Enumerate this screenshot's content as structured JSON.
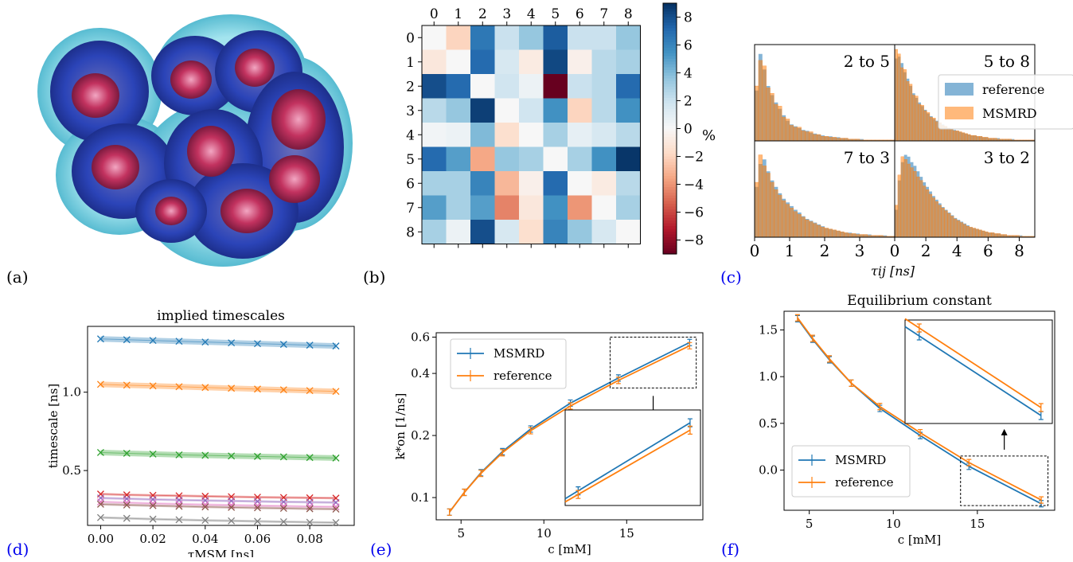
{
  "panel_labels": [
    "(a)",
    "(b)",
    "(c)",
    "(d)",
    "(e)",
    "(f)"
  ],
  "colors": {
    "blue": "#1f77b4",
    "orange": "#ff7f0e",
    "green": "#2ca02c",
    "red": "#d62728",
    "purple": "#9467bd",
    "brown": "#8c564b",
    "pink": "#e377c2",
    "gray": "#7f7f7f"
  },
  "chart_data": [
    {
      "id": "b",
      "type": "heatmap",
      "x_ticks": [
        "0",
        "1",
        "2",
        "3",
        "4",
        "5",
        "6",
        "7",
        "8"
      ],
      "y_ticks": [
        "0",
        "1",
        "2",
        "3",
        "4",
        "5",
        "6",
        "7",
        "8"
      ],
      "matrix": [
        [
          0,
          -2.0,
          6.5,
          2.0,
          3.5,
          7.5,
          2.0,
          2.0,
          3.5
        ],
        [
          -1.0,
          0,
          7.0,
          1.5,
          -0.8,
          8.2,
          -0.5,
          2.5,
          3.0
        ],
        [
          8.0,
          7.0,
          0,
          1.8,
          0.5,
          -9.0,
          2.0,
          2.5,
          7.0
        ],
        [
          2.5,
          3.5,
          8.5,
          0,
          1.8,
          5.5,
          -2.0,
          2.5,
          5.5
        ],
        [
          0.3,
          0.5,
          4.0,
          -1.5,
          0,
          3.0,
          0.8,
          1.5,
          2.5
        ],
        [
          7.0,
          5.0,
          -3.5,
          3.5,
          3.0,
          0,
          3.0,
          5.5,
          8.8
        ],
        [
          3.0,
          3.0,
          6.0,
          -3.0,
          -0.5,
          7.0,
          0,
          -0.8,
          2.5
        ],
        [
          5.0,
          3.0,
          5.0,
          -4.5,
          -1.0,
          5.5,
          -4.0,
          0,
          3.0
        ],
        [
          3.0,
          0.5,
          8.0,
          1.5,
          -1.5,
          6.0,
          3.5,
          1.5,
          0
        ]
      ],
      "colorbar_ticks": [
        8,
        6,
        4,
        2,
        0,
        -2,
        -4,
        -6,
        -8
      ],
      "colorbar_ticks_text": [
        "8",
        "6",
        "4",
        "2",
        "0",
        "−2",
        "−4",
        "−6",
        "−8"
      ],
      "colorbar_unit": "%",
      "vlim": [
        -9,
        9
      ]
    },
    {
      "id": "c",
      "type": "bar",
      "xlabel": "τij [ns]",
      "legend": [
        "reference",
        "MSMRD"
      ],
      "legend_position": "top-right",
      "subplots": [
        {
          "title": "2 to 5",
          "xlim": [
            0,
            4
          ],
          "reference": [
            0.55,
            0.95,
            0.78,
            0.6,
            0.5,
            0.42,
            0.35,
            0.28,
            0.22,
            0.18,
            0.16,
            0.14,
            0.12,
            0.11,
            0.09,
            0.08,
            0.07,
            0.06,
            0.05,
            0.05,
            0.04,
            0.04,
            0.03,
            0.03,
            0.02,
            0.02,
            0.02,
            0.02,
            0.01,
            0.01,
            0.01,
            0.01,
            0.01,
            0.01,
            0.01,
            0.01
          ],
          "msmrd": [
            0.6,
            0.88,
            0.82,
            0.58,
            0.52,
            0.4,
            0.38,
            0.26,
            0.24,
            0.17,
            0.15,
            0.15,
            0.11,
            0.1,
            0.1,
            0.07,
            0.07,
            0.05,
            0.05,
            0.04,
            0.04,
            0.03,
            0.03,
            0.03,
            0.02,
            0.02,
            0.02,
            0.01,
            0.01,
            0.01,
            0.01,
            0.01,
            0.01,
            0.01,
            0.01,
            0.01
          ]
        },
        {
          "title": "5 to 8",
          "xlim": [
            0,
            9
          ],
          "reference": [
            0.9,
            0.92,
            0.85,
            0.75,
            0.68,
            0.6,
            0.52,
            0.47,
            0.42,
            0.38,
            0.34,
            0.3,
            0.27,
            0.24,
            0.22,
            0.2,
            0.18,
            0.16,
            0.14,
            0.13,
            0.12,
            0.11,
            0.1,
            0.09,
            0.08,
            0.07,
            0.06,
            0.06,
            0.05,
            0.05,
            0.04,
            0.04,
            0.03,
            0.03,
            0.03,
            0.03,
            0.02,
            0.02,
            0.02,
            0.02,
            0.02,
            0.01,
            0.01,
            0.01,
            0.01,
            0.01,
            0.01,
            0.01
          ],
          "msmrd": [
            1.0,
            0.95,
            0.8,
            0.78,
            0.65,
            0.62,
            0.5,
            0.49,
            0.4,
            0.39,
            0.33,
            0.31,
            0.26,
            0.25,
            0.21,
            0.2,
            0.17,
            0.16,
            0.14,
            0.13,
            0.11,
            0.11,
            0.1,
            0.09,
            0.08,
            0.07,
            0.06,
            0.06,
            0.05,
            0.05,
            0.04,
            0.04,
            0.03,
            0.03,
            0.03,
            0.02,
            0.02,
            0.02,
            0.02,
            0.02,
            0.01,
            0.01,
            0.01,
            0.01,
            0.01,
            0.01,
            0.01,
            0.01
          ]
        },
        {
          "title": "7 to 3",
          "xlim": [
            0,
            4
          ],
          "reference": [
            0.55,
            0.8,
            0.85,
            0.72,
            0.62,
            0.55,
            0.48,
            0.42,
            0.38,
            0.34,
            0.3,
            0.27,
            0.23,
            0.2,
            0.18,
            0.16,
            0.14,
            0.12,
            0.1,
            0.09,
            0.08,
            0.07,
            0.06,
            0.05,
            0.05,
            0.04,
            0.04,
            0.03,
            0.03,
            0.03,
            0.02,
            0.02,
            0.02,
            0.02,
            0.01,
            0.01
          ],
          "msmrd": [
            0.6,
            0.9,
            0.78,
            0.7,
            0.6,
            0.52,
            0.46,
            0.4,
            0.36,
            0.32,
            0.28,
            0.25,
            0.22,
            0.19,
            0.17,
            0.15,
            0.13,
            0.11,
            0.1,
            0.09,
            0.08,
            0.07,
            0.06,
            0.05,
            0.04,
            0.04,
            0.03,
            0.03,
            0.03,
            0.02,
            0.02,
            0.02,
            0.02,
            0.01,
            0.01,
            0.01
          ]
        },
        {
          "title": "3 to 2",
          "xlim": [
            0,
            9
          ],
          "reference": [
            0.3,
            0.62,
            0.82,
            0.9,
            0.88,
            0.82,
            0.78,
            0.72,
            0.66,
            0.6,
            0.55,
            0.5,
            0.45,
            0.41,
            0.37,
            0.33,
            0.3,
            0.27,
            0.24,
            0.21,
            0.19,
            0.17,
            0.15,
            0.13,
            0.11,
            0.1,
            0.09,
            0.08,
            0.07,
            0.06,
            0.05,
            0.05,
            0.04,
            0.04,
            0.03,
            0.03,
            0.02,
            0.02,
            0.02,
            0.02,
            0.02,
            0.01,
            0.01,
            0.01,
            0.01
          ],
          "msmrd": [
            0.35,
            0.68,
            0.88,
            0.85,
            0.8,
            0.76,
            0.72,
            0.66,
            0.62,
            0.56,
            0.52,
            0.47,
            0.43,
            0.39,
            0.35,
            0.32,
            0.29,
            0.26,
            0.23,
            0.2,
            0.18,
            0.16,
            0.14,
            0.12,
            0.11,
            0.1,
            0.09,
            0.08,
            0.07,
            0.06,
            0.05,
            0.05,
            0.04,
            0.04,
            0.03,
            0.03,
            0.02,
            0.02,
            0.02,
            0.02,
            0.01,
            0.01,
            0.01,
            0.01,
            0.01
          ]
        }
      ],
      "x_ticks_left": [
        "0",
        "1",
        "2",
        "3"
      ],
      "x_ticks_right": [
        "0",
        "2",
        "4",
        "6",
        "8"
      ]
    },
    {
      "id": "d",
      "type": "line",
      "title": "implied timescales",
      "xlabel": "τMSM [ns]",
      "ylabel": "timescale [ns]",
      "x": [
        0.0,
        0.01,
        0.02,
        0.03,
        0.04,
        0.05,
        0.06,
        0.07,
        0.08,
        0.09
      ],
      "xlim": [
        -0.005,
        0.097
      ],
      "ylim": [
        0.15,
        1.42
      ],
      "x_ticks": [
        0.0,
        0.02,
        0.04,
        0.06,
        0.08
      ],
      "x_ticks_text": [
        "0.00",
        "0.02",
        "0.04",
        "0.06",
        "0.08"
      ],
      "y_ticks": [
        0.5,
        1.0
      ],
      "y_ticks_text": [
        "0.5",
        "1.0"
      ],
      "series": [
        {
          "color": "#1f77b4",
          "values": [
            1.34,
            1.335,
            1.33,
            1.325,
            1.32,
            1.315,
            1.31,
            1.305,
            1.3,
            1.295
          ]
        },
        {
          "color": "#ff7f0e",
          "values": [
            1.05,
            1.045,
            1.04,
            1.035,
            1.03,
            1.025,
            1.02,
            1.015,
            1.01,
            1.005
          ]
        },
        {
          "color": "#2ca02c",
          "values": [
            0.615,
            0.61,
            0.605,
            0.6,
            0.597,
            0.593,
            0.59,
            0.587,
            0.583,
            0.58
          ]
        },
        {
          "color": "#d62728",
          "values": [
            0.35,
            0.345,
            0.342,
            0.339,
            0.336,
            0.333,
            0.33,
            0.328,
            0.326,
            0.324
          ]
        },
        {
          "color": "#9467bd",
          "values": [
            0.325,
            0.32,
            0.316,
            0.312,
            0.309,
            0.306,
            0.303,
            0.3,
            0.298,
            0.296
          ]
        },
        {
          "color": "#e377c2",
          "values": [
            0.3,
            0.295,
            0.29,
            0.286,
            0.282,
            0.279,
            0.276,
            0.273,
            0.27,
            0.268
          ]
        },
        {
          "color": "#8c564b",
          "values": [
            0.285,
            0.28,
            0.276,
            0.272,
            0.268,
            0.265,
            0.262,
            0.259,
            0.256,
            0.254
          ]
        },
        {
          "color": "#7f7f7f",
          "values": [
            0.2,
            0.195,
            0.19,
            0.186,
            0.182,
            0.179,
            0.176,
            0.173,
            0.17,
            0.168
          ]
        }
      ]
    },
    {
      "id": "e",
      "type": "line",
      "xlabel": "c [mM]",
      "ylabel": "k*on [1/ns]",
      "yscale": "log",
      "x": [
        4.3,
        5.2,
        6.2,
        7.5,
        9.2,
        11.6,
        14.5,
        18.8
      ],
      "xlim": [
        3.5,
        19.6
      ],
      "ylim": [
        0.078,
        0.63
      ],
      "x_ticks": [
        5,
        10,
        15
      ],
      "x_ticks_text": [
        "5",
        "10",
        "15"
      ],
      "y_ticks": [
        0.1,
        0.2,
        0.4,
        0.6
      ],
      "y_ticks_text": [
        "0.1",
        "0.2",
        "0.4",
        "0.6"
      ],
      "legend": [
        "MSMRD",
        "reference"
      ],
      "legend_position": "upper-left",
      "inset": true,
      "series": [
        {
          "name": "MSMRD",
          "color": "#1f77b4",
          "values": [
            0.085,
            0.106,
            0.132,
            0.167,
            0.215,
            0.287,
            0.38,
            0.565
          ]
        },
        {
          "name": "reference",
          "color": "#ff7f0e",
          "values": [
            0.085,
            0.106,
            0.131,
            0.165,
            0.211,
            0.278,
            0.37,
            0.545
          ]
        }
      ]
    },
    {
      "id": "f",
      "type": "line",
      "title": "Equilibrium constant",
      "xlabel": "c [mM]",
      "x": [
        4.3,
        5.2,
        6.2,
        7.5,
        9.2,
        11.6,
        14.5,
        18.8
      ],
      "xlim": [
        3.5,
        19.6
      ],
      "ylim": [
        -0.43,
        1.7
      ],
      "x_ticks": [
        5,
        10,
        15
      ],
      "x_ticks_text": [
        "5",
        "10",
        "15"
      ],
      "y_ticks": [
        0.0,
        0.5,
        1.0,
        1.5
      ],
      "y_ticks_text": [
        "0.0",
        "0.5",
        "1.0",
        "1.5"
      ],
      "legend": [
        "MSMRD",
        "reference"
      ],
      "legend_position": "lower-left",
      "inset": true,
      "series": [
        {
          "name": "MSMRD",
          "color": "#1f77b4",
          "values": [
            1.62,
            1.4,
            1.18,
            0.93,
            0.66,
            0.37,
            0.04,
            -0.36
          ]
        },
        {
          "name": "reference",
          "color": "#ff7f0e",
          "values": [
            1.63,
            1.41,
            1.19,
            0.93,
            0.68,
            0.4,
            0.08,
            -0.32
          ]
        }
      ]
    }
  ]
}
